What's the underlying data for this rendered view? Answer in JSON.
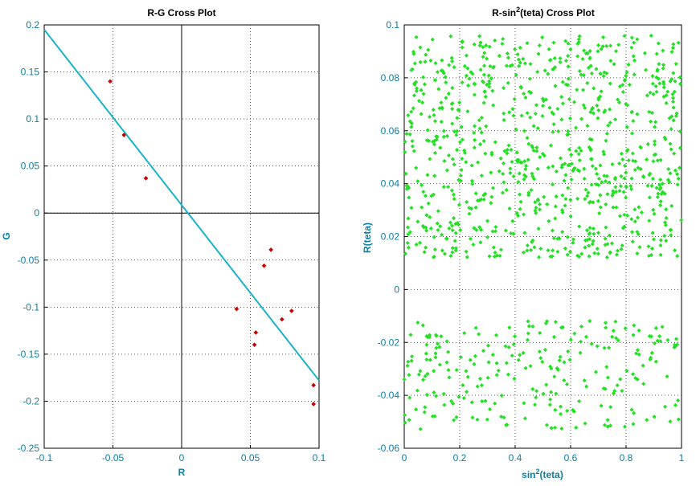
{
  "colors": {
    "background": "#ffffff",
    "axis": "#000000",
    "grid": "#1b64b3",
    "label": "#0a7fa6",
    "fit_line": "#19b3c8",
    "marker_left": "#cc0000",
    "marker_right": "#22e022"
  },
  "chart_data": [
    {
      "type": "scatter",
      "title": "R-G Cross Plot",
      "xlabel": "R",
      "ylabel": "G",
      "xlim": [
        -0.1,
        0.1
      ],
      "ylim": [
        -0.25,
        0.2
      ],
      "xticks": [
        -0.1,
        -0.05,
        0,
        0.05,
        0.1
      ],
      "xtick_labels": [
        "-0.1",
        "-0.05",
        "0",
        "0.05",
        "0.1"
      ],
      "yticks": [
        -0.25,
        -0.2,
        -0.15,
        -0.1,
        -0.05,
        0,
        0.05,
        0.1,
        0.15,
        0.2
      ],
      "ytick_labels": [
        "-0.25",
        "-0.2",
        "-0.15",
        "-0.1",
        "-0.05",
        "0",
        "0.05",
        "0.1",
        "0.15",
        "0.2"
      ],
      "grid": true,
      "zero_lines": true,
      "fit_line": {
        "x": [
          -0.1,
          0.1
        ],
        "y": [
          0.195,
          -0.178
        ]
      },
      "points": {
        "x": [
          -0.052,
          -0.042,
          -0.026,
          0.04,
          0.053,
          0.054,
          0.06,
          0.065,
          0.073,
          0.08,
          0.096,
          0.096
        ],
        "y": [
          0.14,
          0.083,
          0.037,
          -0.102,
          -0.14,
          -0.127,
          -0.056,
          -0.039,
          -0.113,
          -0.104,
          -0.183,
          -0.203
        ]
      }
    },
    {
      "type": "scatter",
      "title_parts": [
        "R-sin",
        "2",
        "(teta) Cross Plot"
      ],
      "xlabel_parts": [
        "sin",
        "2",
        "(teta)"
      ],
      "ylabel": "R(teta)",
      "xlim": [
        0,
        1
      ],
      "ylim": [
        -0.06,
        0.1
      ],
      "xticks": [
        0,
        0.2,
        0.4,
        0.6,
        0.8,
        1
      ],
      "xtick_labels": [
        "0",
        "0.2",
        "0.4",
        "0.6",
        "0.8",
        "1"
      ],
      "yticks": [
        -0.06,
        -0.04,
        -0.02,
        0,
        0.02,
        0.04,
        0.06,
        0.08,
        0.1
      ],
      "ytick_labels": [
        "-0.06",
        "-0.04",
        "-0.02",
        "0",
        "0.02",
        "0.04",
        "0.06",
        "0.08",
        "0.1"
      ],
      "grid": true,
      "point_count": 1100,
      "bands": [
        {
          "y_min": 0.012,
          "y_max": 0.096,
          "share": 0.78
        },
        {
          "y_min": -0.053,
          "y_max": -0.012,
          "share": 0.22
        }
      ]
    }
  ]
}
